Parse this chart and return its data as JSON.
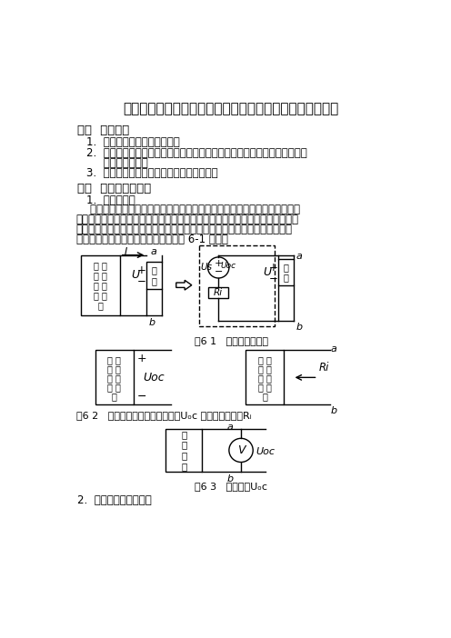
{
  "title": "《电路基础》戴维南定理验证和有源二端口网络的研究实验",
  "s1_title": "一、  实验目的",
  "s1_items": [
    "1.  用实验方法验证戴维南定理",
    "2.  掌握有源二端口网络的开路电压和入端等效电阱的测定方法，并了解各种",
    "     测量方法的特点",
    "3.  证实有源二端口网络输出最大功率的条件"
  ],
  "s2_title": "二、  实验原理与说明",
  "s2_sub": "1.  戴维南定理",
  "para_lines": [
    "    一个含独立电源、受控源和线性电阱的二端口网络，其对外作用可以用一个",
    "电压源串联电阱的等效电源代替，其等效源电压等于此二端口网络的开路电压，",
    "其等效内阱是二端口网络内部各独立电源置零后所对应的不含独立源的二端口",
    "网络的输入电阱（或称等效电阱）如图 6-1 所示。"
  ],
  "fig61_cap": "图6 1   戴维南等效电路",
  "fig62_cap": "图6 2   有源二端口网络的开路电压Uₒc 和入端等效电阱Rᵢ",
  "fig63_cap": "图6 3   直接测量Uₒc",
  "s2_last": "2.  开路电压的测定方法",
  "bg": "#ffffff"
}
